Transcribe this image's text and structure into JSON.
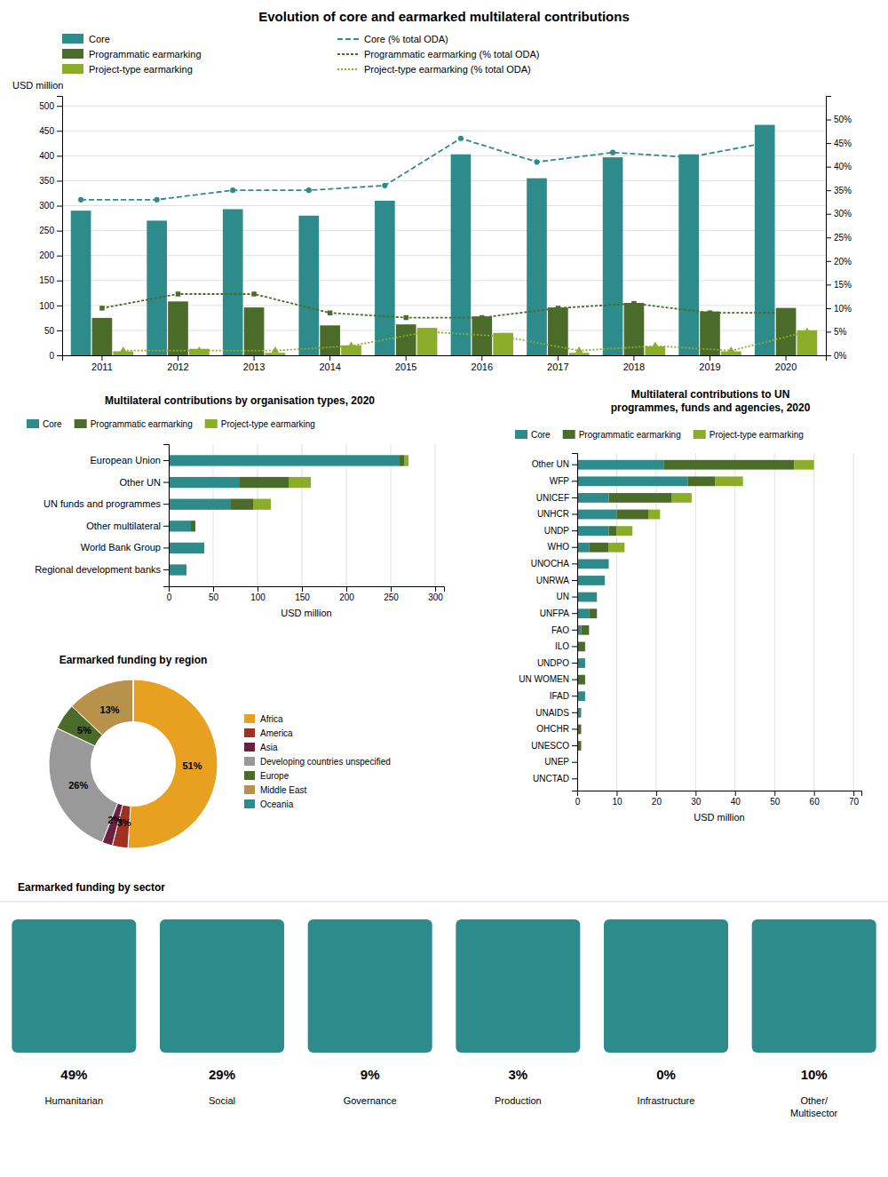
{
  "chart_data": [
    {
      "type": "bar",
      "title": "Evolution of core and earmarked multilateral contributions",
      "y_label": "USD million",
      "categories": [
        "2011",
        "2012",
        "2013",
        "2014",
        "2015",
        "2016",
        "2017",
        "2018",
        "2019",
        "2020"
      ],
      "series": [
        {
          "name": "Core",
          "color": "#2E8B8B",
          "values": [
            290,
            270,
            293,
            280,
            310,
            403,
            355,
            397,
            403,
            462
          ]
        },
        {
          "name": "Programmatic earmarking",
          "color": "#4B6B2A",
          "values": [
            75,
            108,
            96,
            60,
            62,
            78,
            96,
            105,
            88,
            95
          ]
        },
        {
          "name": "Project-type earmarking",
          "color": "#8BAD2A",
          "values": [
            8,
            13,
            5,
            20,
            55,
            45,
            5,
            18,
            8,
            50
          ]
        },
        {
          "name": "Core (% total ODA)",
          "type": "line",
          "axis": "y2",
          "color": "#2E8B8B",
          "line_style": "dashed",
          "marker": "circle",
          "values": [
            33,
            33,
            35,
            35,
            36,
            46,
            41,
            43,
            42,
            45
          ]
        },
        {
          "name": "Programmatic earmarking (% total ODA)",
          "type": "line",
          "axis": "y2",
          "color": "#4B6B2A",
          "line_style": "dashed",
          "marker": "square",
          "values": [
            10,
            13,
            13,
            9,
            8,
            8,
            10,
            11,
            9,
            9
          ]
        },
        {
          "name": "Project-type earmarking (% total ODA)",
          "type": "line",
          "axis": "y2",
          "color": "#8BAD2A",
          "line_style": "dashed",
          "marker": "triangle",
          "values": [
            1,
            1,
            1,
            2,
            5,
            4,
            1,
            2,
            1,
            5
          ]
        }
      ],
      "ylim": [
        0,
        520
      ],
      "yticks": [
        0,
        50,
        100,
        150,
        200,
        250,
        300,
        350,
        400,
        450,
        500
      ],
      "y2lim": [
        0,
        55
      ],
      "y2ticks": [
        {
          "value": 0,
          "label": "0%"
        },
        {
          "value": 5,
          "label": "5%"
        },
        {
          "value": 10,
          "label": "10%"
        },
        {
          "value": 15,
          "label": "15%"
        },
        {
          "value": 20,
          "label": "20%"
        },
        {
          "value": 25,
          "label": "25%"
        },
        {
          "value": 30,
          "label": "30%"
        },
        {
          "value": 35,
          "label": "35%"
        },
        {
          "value": 40,
          "label": "40%"
        },
        {
          "value": 45,
          "label": "45%"
        },
        {
          "value": 50,
          "label": "50%"
        }
      ],
      "grid": true,
      "legend": "upper left"
    },
    {
      "type": "bar",
      "orientation": "horizontal",
      "stacked": true,
      "title": "Multilateral contributions by organisation types, 2020",
      "x_label": "USD million",
      "categories": [
        "European Union",
        "Other UN",
        "UN funds and programmes",
        "Other multilateral",
        "World Bank Group",
        "Regional development banks"
      ],
      "series": [
        {
          "name": "Core",
          "color": "#2E8B8B",
          "values": [
            260,
            80,
            70,
            25,
            40,
            20
          ]
        },
        {
          "name": "Programmatic earmarking",
          "color": "#4B6B2A",
          "values": [
            5,
            55,
            25,
            5,
            0,
            0
          ]
        },
        {
          "name": "Project-type earmarking",
          "color": "#8BAD2A",
          "values": [
            5,
            25,
            20,
            0,
            0,
            0
          ]
        }
      ],
      "xlim": [
        0,
        310
      ],
      "xticks": [
        0,
        50,
        100,
        150,
        200,
        250,
        300
      ],
      "grid": true,
      "legend": "upper left"
    },
    {
      "type": "bar",
      "orientation": "horizontal",
      "stacked": true,
      "title": "Multilateral contributions to UN\nprogrammes, funds and agencies, 2020",
      "x_label": "USD million",
      "categories": [
        "Other UN",
        "WFP",
        "UNICEF",
        "UNHCR",
        "UNDP",
        "WHO",
        "UNOCHA",
        "UNRWA",
        "UN",
        "UNFPA",
        "FAO",
        "ILO",
        "UNDPO",
        "UN WOMEN",
        "IFAD",
        "UNAIDS",
        "OHCHR",
        "UNESCO",
        "UNEP",
        "UNCTAD"
      ],
      "series": [
        {
          "name": "Core",
          "color": "#2E8B8B",
          "values": [
            22,
            28,
            8,
            10,
            8,
            3,
            8,
            7,
            5,
            3,
            1,
            0,
            2,
            0,
            2,
            1,
            0,
            0,
            0,
            0
          ]
        },
        {
          "name": "Programmatic earmarking",
          "color": "#4B6B2A",
          "values": [
            33,
            7,
            16,
            8,
            2,
            5,
            0,
            0,
            0,
            2,
            2,
            2,
            0,
            2,
            0,
            0,
            1,
            1,
            0,
            0
          ]
        },
        {
          "name": "Project-type earmarking",
          "color": "#8BAD2A",
          "values": [
            5,
            7,
            5,
            3,
            4,
            4,
            0,
            0,
            0,
            0,
            0,
            0,
            0,
            0,
            0,
            0,
            0,
            0,
            0,
            0
          ]
        }
      ],
      "xlim": [
        0,
        72
      ],
      "xticks": [
        0,
        10,
        20,
        30,
        40,
        50,
        60,
        70
      ],
      "grid": true,
      "legend": "upper left"
    },
    {
      "type": "donut",
      "title": "Earmarked funding by region",
      "categories": [
        "Africa",
        "America",
        "Asia",
        "Developing countries unspecified",
        "Europe",
        "Middle East",
        "Oceania"
      ],
      "values": [
        51,
        3,
        2,
        26,
        5,
        13,
        0
      ],
      "colors": [
        "#E8A020",
        "#A03020",
        "#6B2040",
        "#999999",
        "#4B6B2A",
        "#B8924A",
        "#2E8B8B"
      ],
      "data_labels": true,
      "value_labels": [
        "51%",
        "3%",
        "2%",
        "26%",
        "5%",
        "13%",
        null
      ],
      "legend": "right"
    },
    {
      "type": "tiles",
      "title": "Earmarked funding by sector",
      "categories": [
        "Humanitarian",
        "Social",
        "Governance",
        "Production",
        "Infrastructure",
        "Other/\nMultisector"
      ],
      "values": [
        49,
        29,
        9,
        3,
        0,
        10
      ],
      "value_labels": [
        "49%",
        "29%",
        "9%",
        "3%",
        "0%",
        "10%"
      ],
      "color": "#2E8B8B",
      "data_labels": true
    }
  ]
}
